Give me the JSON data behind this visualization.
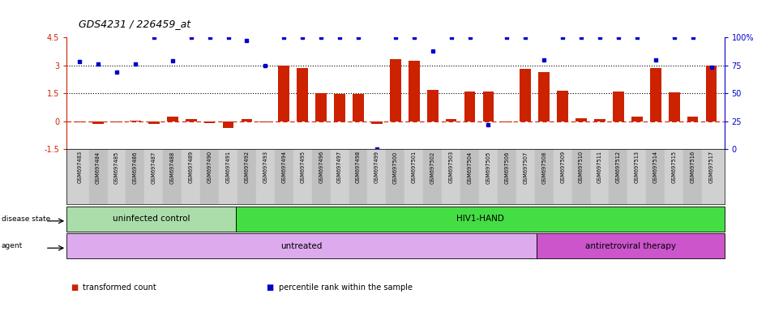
{
  "title": "GDS4231 / 226459_at",
  "samples": [
    "GSM697483",
    "GSM697484",
    "GSM697485",
    "GSM697486",
    "GSM697487",
    "GSM697488",
    "GSM697489",
    "GSM697490",
    "GSM697491",
    "GSM697492",
    "GSM697493",
    "GSM697494",
    "GSM697495",
    "GSM697496",
    "GSM697497",
    "GSM697498",
    "GSM697499",
    "GSM697500",
    "GSM697501",
    "GSM697502",
    "GSM697503",
    "GSM697504",
    "GSM697505",
    "GSM697506",
    "GSM697507",
    "GSM697508",
    "GSM697509",
    "GSM697510",
    "GSM697511",
    "GSM697512",
    "GSM697513",
    "GSM697514",
    "GSM697515",
    "GSM697516",
    "GSM697517"
  ],
  "bar_values": [
    -0.05,
    -0.15,
    -0.05,
    0.05,
    -0.15,
    0.25,
    0.1,
    -0.1,
    -0.35,
    0.1,
    -0.05,
    3.0,
    2.85,
    1.5,
    1.45,
    1.45,
    -0.15,
    3.35,
    3.25,
    1.7,
    0.1,
    1.6,
    1.6,
    -0.05,
    2.8,
    2.65,
    1.65,
    0.15,
    0.1,
    1.6,
    0.25,
    2.85,
    1.55,
    0.25,
    3.0
  ],
  "percentile_values_pct": [
    78,
    76,
    69,
    76,
    100,
    79,
    100,
    100,
    100,
    97,
    75,
    100,
    100,
    100,
    100,
    100,
    0,
    100,
    100,
    88,
    100,
    100,
    22,
    100,
    100,
    80,
    100,
    100,
    100,
    100,
    100,
    80,
    100,
    100,
    73
  ],
  "bar_color": "#cc2200",
  "point_color": "#0000cc",
  "ylim_left": [
    -1.5,
    4.5
  ],
  "yticks_left": [
    -1.5,
    0.0,
    1.5,
    3.0,
    4.5
  ],
  "ytick_labels_left": [
    "-1.5",
    "0",
    "1.5",
    "3",
    "4.5"
  ],
  "yticks_right_pct": [
    0,
    25,
    50,
    75,
    100
  ],
  "dotted_hlines": [
    1.5,
    3.0
  ],
  "dashed_hline": 0.0,
  "disease_state_groups": [
    {
      "label": "uninfected control",
      "start": 0,
      "end": 8,
      "color": "#aaddaa"
    },
    {
      "label": "HIV1-HAND",
      "start": 9,
      "end": 34,
      "color": "#44dd44"
    }
  ],
  "agent_groups": [
    {
      "label": "untreated",
      "start": 0,
      "end": 24,
      "color": "#ddaaee"
    },
    {
      "label": "antiretroviral therapy",
      "start": 25,
      "end": 34,
      "color": "#cc55cc"
    }
  ],
  "legend_items": [
    {
      "label": "transformed count",
      "color": "#cc2200"
    },
    {
      "label": "percentile rank within the sample",
      "color": "#0000cc"
    }
  ]
}
